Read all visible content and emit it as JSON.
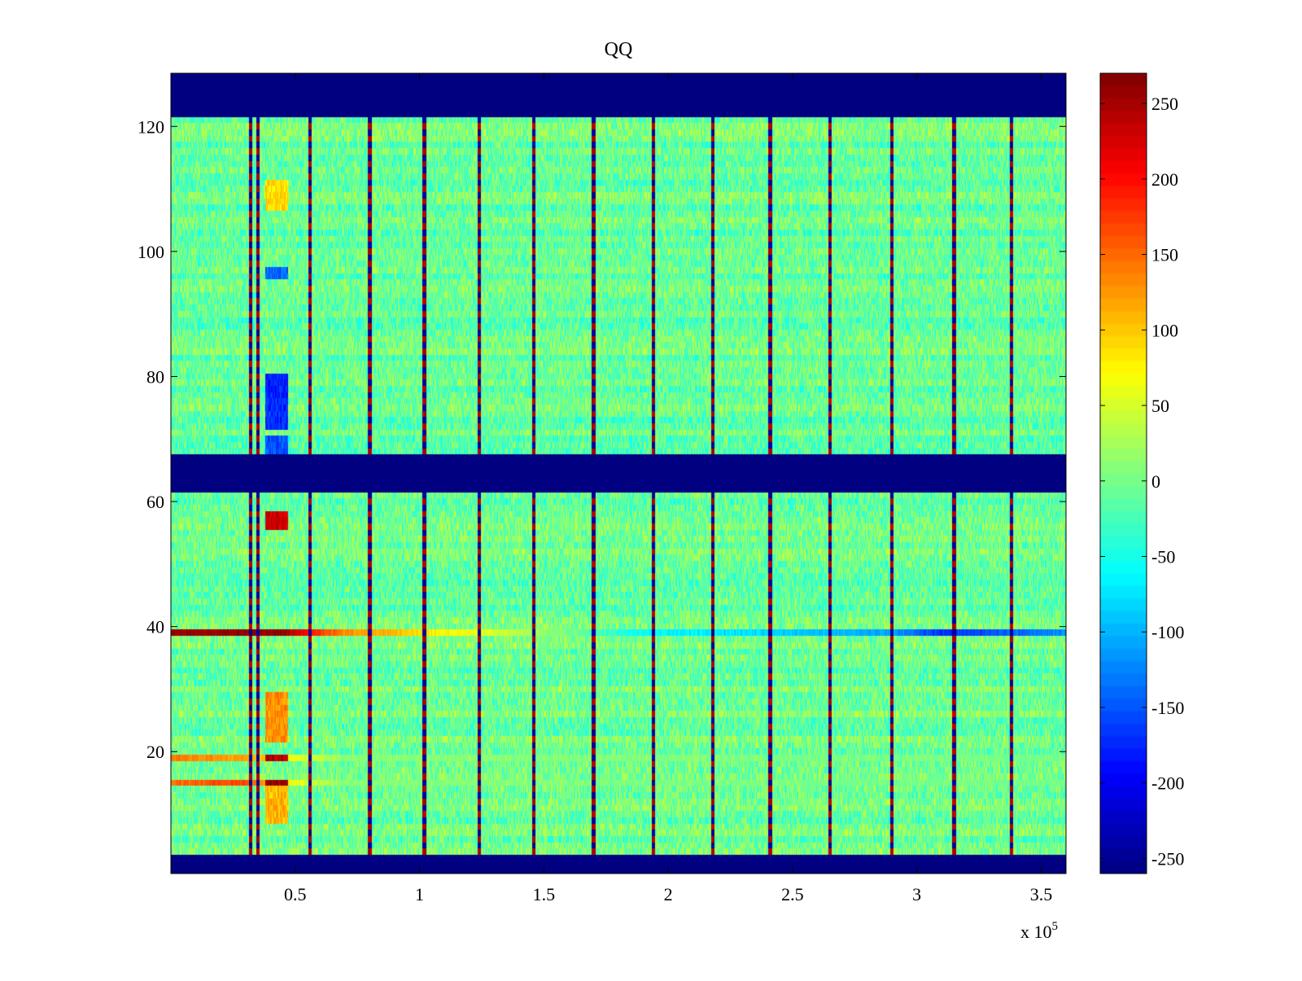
{
  "chart_data": {
    "type": "heatmap",
    "title": "QQ",
    "xlabel": "",
    "ylabel": "",
    "x_exponent_label": "x 10",
    "x_exponent_power": "5",
    "xlim": [
      0,
      3.6
    ],
    "ylim": [
      0.5,
      128.5
    ],
    "x_ticks": [
      {
        "value": 0.5,
        "label": "0.5"
      },
      {
        "value": 1,
        "label": "1"
      },
      {
        "value": 1.5,
        "label": "1.5"
      },
      {
        "value": 2,
        "label": "2"
      },
      {
        "value": 2.5,
        "label": "2.5"
      },
      {
        "value": 3,
        "label": "3"
      },
      {
        "value": 3.5,
        "label": "3.5"
      }
    ],
    "y_ticks": [
      {
        "value": 20,
        "label": "20"
      },
      {
        "value": 40,
        "label": "40"
      },
      {
        "value": 60,
        "label": "60"
      },
      {
        "value": 80,
        "label": "80"
      },
      {
        "value": 100,
        "label": "100"
      },
      {
        "value": 120,
        "label": "120"
      }
    ],
    "colorbar": {
      "range": [
        -260,
        270
      ],
      "ticks": [
        {
          "value": 250,
          "label": "250"
        },
        {
          "value": 200,
          "label": "200"
        },
        {
          "value": 150,
          "label": "150"
        },
        {
          "value": 100,
          "label": "100"
        },
        {
          "value": 50,
          "label": "50"
        },
        {
          "value": 0,
          "label": "0"
        },
        {
          "value": -50,
          "label": "-50"
        },
        {
          "value": -100,
          "label": "-100"
        },
        {
          "value": -150,
          "label": "-150"
        },
        {
          "value": -200,
          "label": "-200"
        },
        {
          "value": -250,
          "label": "-250"
        }
      ],
      "colormap": "jet"
    },
    "background_noise": {
      "mean": -5,
      "spread": 40
    },
    "masked_row_ranges": [
      [
        0.5,
        3.5
      ],
      [
        61.5,
        67.5
      ],
      [
        121.5,
        128.5
      ]
    ],
    "masked_value": -260,
    "vertical_stripes_x": [
      0.32,
      0.35,
      0.56,
      0.8,
      1.02,
      1.24,
      1.46,
      1.7,
      1.94,
      2.18,
      2.41,
      2.65,
      2.9,
      3.15,
      3.38
    ],
    "highlight_blocks": [
      {
        "x0": 0.38,
        "x1": 0.47,
        "rows": [
          9,
          14
        ],
        "value": 110
      },
      {
        "x0": 0.38,
        "x1": 0.47,
        "rows": [
          15,
          15
        ],
        "value": 260
      },
      {
        "x0": 0.38,
        "x1": 0.47,
        "rows": [
          19,
          19
        ],
        "value": 240
      },
      {
        "x0": 0.38,
        "x1": 0.47,
        "rows": [
          22,
          29
        ],
        "value": 130
      },
      {
        "x0": 0.38,
        "x1": 0.47,
        "rows": [
          56,
          58
        ],
        "value": 230
      },
      {
        "x0": 0.38,
        "x1": 0.47,
        "rows": [
          72,
          76
        ],
        "value": -170
      },
      {
        "x0": 0.38,
        "x1": 0.47,
        "rows": [
          77,
          80
        ],
        "value": -180
      },
      {
        "x0": 0.38,
        "x1": 0.47,
        "rows": [
          96,
          97
        ],
        "value": -140
      },
      {
        "x0": 0.38,
        "x1": 0.47,
        "rows": [
          107,
          111
        ],
        "value": 90
      },
      {
        "x0": 0.38,
        "x1": 0.47,
        "rows": [
          68,
          70
        ],
        "value": -150
      }
    ],
    "row_profiles": [
      {
        "row": 39,
        "points": [
          [
            0,
            260
          ],
          [
            0.45,
            260
          ],
          [
            0.55,
            200
          ],
          [
            0.7,
            130
          ],
          [
            1.0,
            90
          ],
          [
            1.3,
            50
          ],
          [
            1.6,
            0
          ],
          [
            1.9,
            -60
          ],
          [
            2.4,
            -80
          ],
          [
            2.9,
            -110
          ],
          [
            3.1,
            -170
          ],
          [
            3.6,
            -120
          ]
        ]
      },
      {
        "row": 15,
        "points": [
          [
            0,
            150
          ],
          [
            0.3,
            170
          ],
          [
            0.5,
            60
          ],
          [
            0.7,
            10
          ],
          [
            3.6,
            0
          ]
        ]
      },
      {
        "row": 19,
        "points": [
          [
            0,
            140
          ],
          [
            0.3,
            120
          ],
          [
            0.5,
            60
          ],
          [
            0.7,
            10
          ],
          [
            3.6,
            0
          ]
        ]
      }
    ]
  }
}
